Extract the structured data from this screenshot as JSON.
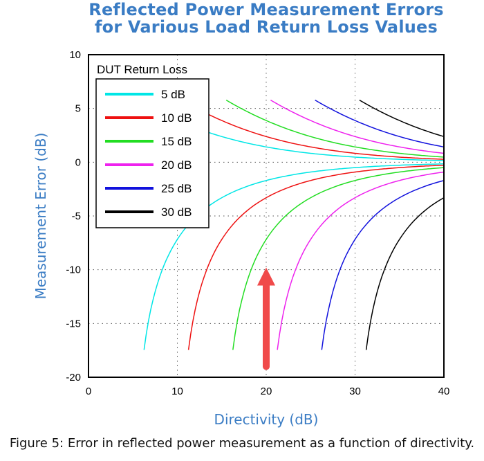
{
  "chart_data": {
    "type": "line",
    "title": [
      "Reflected Power Measurement Errors",
      "for Various Load Return Loss Values"
    ],
    "xlabel": "Directivity (dB)",
    "ylabel": "Measurement Error (dB)",
    "xlim": [
      0,
      40
    ],
    "ylim": [
      -20,
      10
    ],
    "xticks": [
      "0",
      "10",
      "20",
      "30",
      "40"
    ],
    "yticks": [
      "10",
      "5",
      "0",
      "-5",
      "-10",
      "-15",
      "-20"
    ],
    "grid": true,
    "legend": {
      "title": "DUT Return Loss",
      "placement": "top-left"
    },
    "series": [
      {
        "name": "5 dB",
        "color": "#00e6e6",
        "rl": 5
      },
      {
        "name": "10 dB",
        "color": "#ee1111",
        "rl": 10
      },
      {
        "name": "15 dB",
        "color": "#22dd22",
        "rl": 15
      },
      {
        "name": "20 dB",
        "color": "#ee22ee",
        "rl": 20
      },
      {
        "name": "25 dB",
        "color": "#1111dd",
        "rl": 25
      },
      {
        "name": "30 dB",
        "color": "#000000",
        "rl": 30
      }
    ],
    "annotation": {
      "type": "arrow",
      "color": "#f04a4a",
      "x": 20,
      "y_start": -19,
      "y_end": -9.8
    }
  },
  "caption": "Figure 5: Error in reflected power measurement as a function of directivity."
}
